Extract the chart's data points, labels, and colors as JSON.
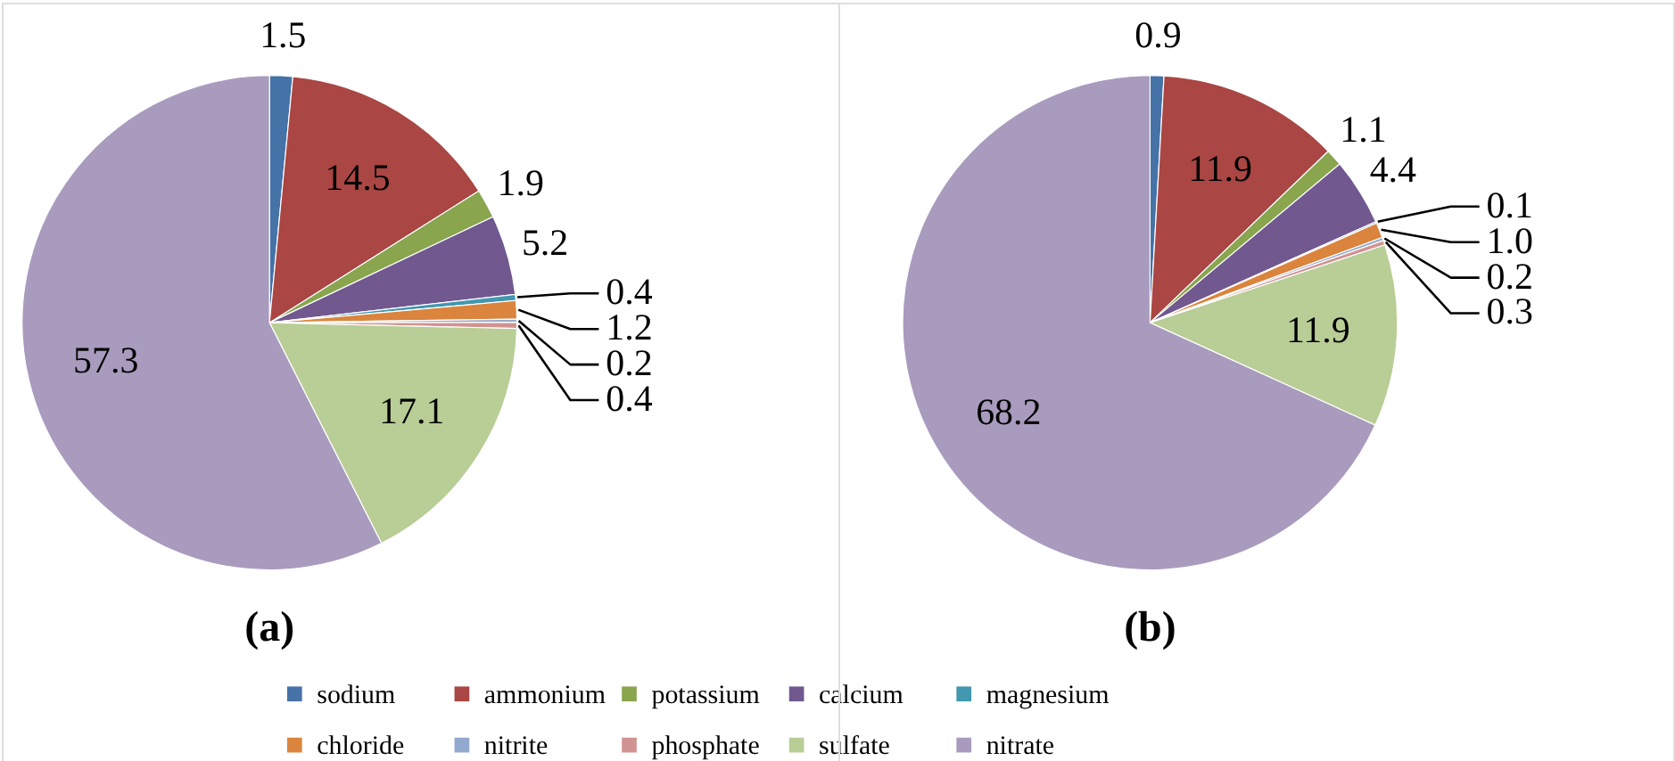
{
  "chart_data": [
    {
      "type": "pie",
      "title": "(a)",
      "categories": [
        "sodium",
        "ammonium",
        "potassium",
        "calcium",
        "magnesium",
        "chloride",
        "nitrite",
        "phosphate",
        "sulfate",
        "nitrate"
      ],
      "values": [
        1.5,
        14.5,
        1.9,
        5.2,
        0.4,
        1.2,
        0.2,
        0.4,
        17.1,
        57.3
      ],
      "colors": [
        "#4572a7",
        "#aa4643",
        "#89a54e",
        "#71588f",
        "#4198af",
        "#db843d",
        "#93a9cf",
        "#d19392",
        "#b9cd96",
        "#a99bbd"
      ],
      "data_labels": true,
      "legend": "bottom"
    },
    {
      "type": "pie",
      "title": "(b)",
      "categories": [
        null,
        null,
        null,
        null,
        null,
        null,
        null,
        null,
        null,
        null
      ],
      "values": [
        0.9,
        11.9,
        1.1,
        4.4,
        0.1,
        1.0,
        0.2,
        0.3,
        11.9,
        68.2
      ],
      "colors": [
        "#4572a7",
        "#aa4643",
        "#89a54e",
        "#71588f",
        "#4198af",
        "#db843d",
        "#93a9cf",
        "#d19392",
        "#b9cd96",
        "#a99bbd"
      ],
      "value_labels": [
        "0.9",
        "11.9",
        "1.1",
        "4.4",
        "0.1",
        "1.0",
        "0.2",
        "0.3",
        "11.9",
        "68.2"
      ]
    }
  ]
}
